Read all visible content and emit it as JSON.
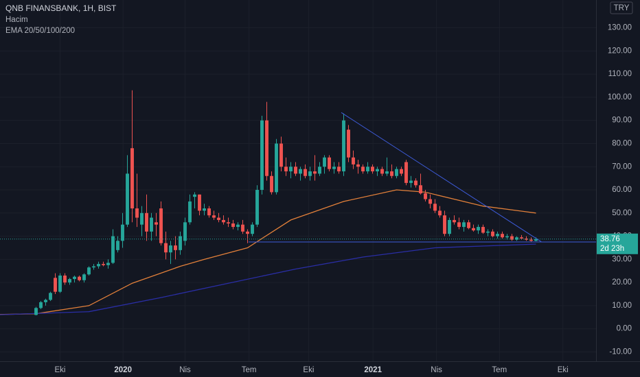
{
  "chart_data": {
    "type": "candlestick",
    "title": "QNB FINANSBANK, 1H, BIST",
    "volume_label": "Hacim",
    "indicator_label": "EMA 20/50/100/200",
    "currency": "TRY",
    "last_price": 38.76,
    "countdown": "2d 23h",
    "up_color": "#26a69a",
    "down_color": "#ef5350",
    "grid": true,
    "xlim": [
      -0.5,
      123.5
    ],
    "xticks": [
      {
        "value": 12,
        "label": "Eki"
      },
      {
        "value": 25.1,
        "label": "2020"
      },
      {
        "value": 38,
        "label": "Nis"
      },
      {
        "value": 51.3,
        "label": "Tem"
      },
      {
        "value": 63.7,
        "label": "Eki"
      },
      {
        "value": 77.1,
        "label": "2021"
      },
      {
        "value": 90.3,
        "label": "Nis"
      },
      {
        "value": 103.4,
        "label": "Tem"
      },
      {
        "value": 116.6,
        "label": "Eki"
      }
    ],
    "ylim": [
      -14,
      142
    ],
    "yticks": [
      {
        "value": -10,
        "label": "-10.00"
      },
      {
        "value": 0,
        "label": "0.00"
      },
      {
        "value": 10,
        "label": "10.00"
      },
      {
        "value": 20,
        "label": "20.00"
      },
      {
        "value": 30,
        "label": "30.00"
      },
      {
        "value": 40,
        "label": "40.00"
      },
      {
        "value": 50,
        "label": "50.00"
      },
      {
        "value": 60,
        "label": "60.00"
      },
      {
        "value": 70,
        "label": "70.00"
      },
      {
        "value": 80,
        "label": "80.00"
      },
      {
        "value": 90,
        "label": "90.00"
      },
      {
        "value": 100,
        "label": "100.00"
      },
      {
        "value": 110,
        "label": "110.00"
      },
      {
        "value": 120,
        "label": "120.00"
      },
      {
        "value": 130,
        "label": "130.00"
      }
    ],
    "x": [
      7,
      8,
      9,
      10,
      11,
      12,
      13,
      14,
      15,
      16,
      17,
      18,
      19,
      20,
      21,
      22,
      23,
      24,
      25,
      26,
      27,
      28,
      29,
      30,
      31,
      32,
      33,
      34,
      35,
      36,
      37,
      38,
      39,
      40,
      41,
      42,
      43,
      44,
      45,
      46,
      47,
      48,
      49,
      50,
      51,
      52,
      53,
      54,
      55,
      56,
      57,
      58,
      59,
      60,
      61,
      62,
      63,
      64,
      65,
      66,
      67,
      68,
      69,
      70,
      71,
      72,
      73,
      74,
      75,
      76,
      77,
      78,
      79,
      80,
      81,
      82,
      83,
      84,
      85,
      86,
      87,
      88,
      89,
      90,
      91,
      92,
      93,
      94,
      95,
      96,
      97,
      98,
      99,
      100,
      101,
      102,
      103,
      104,
      105,
      106,
      107,
      108,
      109,
      110,
      111
    ],
    "open": [
      6,
      9,
      11.5,
      12.5,
      22,
      16,
      23,
      20,
      21.5,
      22.5,
      21,
      23.5,
      26.5,
      27,
      28,
      27.5,
      28.5,
      34,
      38,
      45,
      78,
      52,
      45,
      50,
      42,
      46,
      52,
      37,
      33,
      36,
      34,
      38,
      46,
      57,
      58,
      51,
      52,
      49,
      48,
      47,
      46,
      45.5,
      44,
      45,
      42,
      41,
      45,
      60,
      90,
      66,
      59,
      80,
      70,
      68,
      70,
      67,
      69,
      66,
      68,
      67,
      70,
      74,
      69,
      70,
      68,
      86,
      74,
      71,
      70,
      68,
      70,
      68,
      69,
      67,
      68,
      66,
      69,
      72,
      63,
      64,
      62,
      58.5,
      56,
      54,
      51,
      49,
      41,
      47,
      46,
      44,
      46,
      43.5,
      42.5,
      44,
      41.5,
      42,
      40,
      41,
      39.5,
      40,
      38.5,
      39.5,
      39,
      38.5,
      38
    ],
    "high": [
      9.5,
      12,
      13,
      16,
      24,
      24,
      24,
      22,
      23,
      23,
      24,
      27,
      28,
      29,
      29,
      30,
      43,
      40,
      50,
      75,
      103,
      67,
      53,
      58,
      50,
      50,
      55,
      42,
      38,
      40,
      42,
      48,
      58,
      59,
      58,
      54,
      53,
      51,
      50,
      49,
      48,
      47,
      46,
      47,
      43,
      46,
      62,
      92,
      98,
      68,
      82,
      83,
      74,
      72,
      72,
      70,
      71,
      70,
      75,
      72,
      75,
      75,
      72,
      72,
      93,
      88,
      77,
      73,
      71,
      72,
      71,
      70,
      70,
      74,
      71,
      70,
      70,
      73,
      66,
      65,
      67,
      60,
      58,
      56,
      53,
      51,
      48,
      49,
      48,
      47,
      47,
      45,
      45,
      45,
      43,
      43,
      42,
      42,
      41,
      41,
      40,
      40.5,
      40,
      39.5,
      39.5
    ],
    "low": [
      5.8,
      8.5,
      10,
      12,
      15,
      15.5,
      19,
      19,
      20,
      20.5,
      20,
      23,
      25.5,
      26,
      27,
      26,
      28,
      33,
      35,
      44,
      46,
      44,
      40,
      38,
      38,
      40,
      36,
      30,
      28,
      30,
      32,
      36,
      45,
      52,
      49,
      49,
      48,
      47,
      46,
      45,
      44,
      43,
      42.5,
      41,
      37,
      40,
      44,
      58,
      64,
      58,
      58,
      68,
      66,
      65,
      66,
      64,
      65,
      64,
      64,
      66,
      67,
      68,
      67,
      67,
      66,
      72,
      69,
      67,
      67,
      67,
      67,
      66,
      66,
      66,
      65,
      65,
      66,
      62,
      61,
      61,
      58,
      55,
      52,
      50,
      48,
      40,
      40,
      45,
      43,
      42,
      43,
      42,
      41,
      41,
      40,
      39.5,
      39,
      39,
      38.5,
      38,
      38,
      38.5,
      38,
      37.5,
      37.8
    ],
    "close": [
      9,
      11.5,
      12.5,
      15.5,
      16,
      23,
      20,
      21.5,
      22.5,
      21,
      23.5,
      26.5,
      27,
      28,
      27.5,
      28.5,
      40,
      38,
      45,
      67,
      52,
      48,
      50,
      42,
      48,
      45,
      37,
      33,
      36,
      34,
      40,
      46,
      55,
      58,
      51,
      52,
      49,
      48,
      47,
      46,
      45.5,
      44,
      45,
      42,
      41,
      45,
      60,
      90,
      66,
      59,
      80,
      70,
      68,
      70,
      67,
      69,
      66,
      68,
      67,
      70,
      74,
      69,
      70,
      68,
      90,
      74,
      71,
      70,
      68,
      70,
      68,
      69,
      67,
      68,
      66,
      69,
      67,
      63,
      64,
      62,
      58.5,
      56,
      54,
      51,
      49,
      41,
      47,
      46,
      44,
      46,
      43.5,
      42.5,
      44,
      41.5,
      42,
      40,
      41,
      39.5,
      40,
      38.5,
      39.5,
      39,
      38.5,
      38,
      38.76
    ],
    "ema_lines": [
      {
        "color": "#e3803a",
        "x": [
          -0.5,
          7,
          18,
          27,
          37,
          42,
          51,
          60,
          71,
          82,
          88,
          100,
          111
        ],
        "values": [
          6.2,
          6.5,
          10,
          19.7,
          27,
          30,
          35,
          47,
          55,
          60,
          59,
          53,
          50
        ]
      },
      {
        "color": "#2a2ea6",
        "x": [
          -0.5,
          18,
          33,
          47,
          61,
          75,
          90,
          111
        ],
        "values": [
          6.1,
          7.4,
          13.5,
          19.7,
          25.8,
          31,
          35,
          36.6
        ]
      }
    ],
    "trendlines": [
      {
        "color": "#3d5bd9",
        "x": [
          70.5,
          112.1
        ],
        "values": [
          93.4,
          37.6
        ]
      },
      {
        "color": "#3d5bd9",
        "x": [
          51.2,
          123.5
        ],
        "values": [
          37.5,
          37.5
        ]
      }
    ]
  }
}
